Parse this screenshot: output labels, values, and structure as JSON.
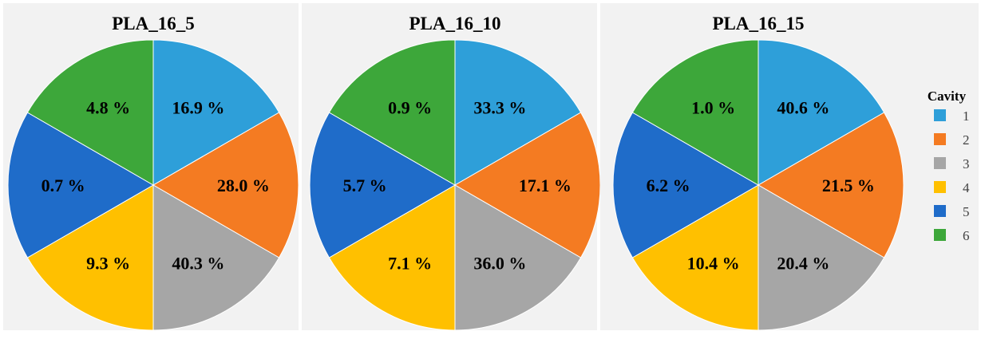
{
  "chart_data": [
    {
      "type": "pie",
      "title": "PLA_16_5",
      "categories": [
        "1",
        "2",
        "3",
        "4",
        "5",
        "6"
      ],
      "labels": [
        "16.9 %",
        "28.0 %",
        "40.3 %",
        "9.3 %",
        "0.7 %",
        "4.8 %"
      ],
      "values": [
        16.9,
        28.0,
        40.3,
        9.3,
        0.7,
        4.8
      ]
    },
    {
      "type": "pie",
      "title": "PLA_16_10",
      "categories": [
        "1",
        "2",
        "3",
        "4",
        "5",
        "6"
      ],
      "labels": [
        "33.3 %",
        "17.1 %",
        "36.0 %",
        "7.1 %",
        "5.7 %",
        "0.9 %"
      ],
      "values": [
        33.3,
        17.1,
        36.0,
        7.1,
        5.7,
        0.9
      ]
    },
    {
      "type": "pie",
      "title": "PLA_16_15",
      "categories": [
        "1",
        "2",
        "3",
        "4",
        "5",
        "6"
      ],
      "labels": [
        "40.6 %",
        "21.5 %",
        "20.4 %",
        "10.4 %",
        "6.2 %",
        "1.0 %"
      ],
      "values": [
        40.6,
        21.5,
        20.4,
        10.4,
        6.2,
        1.0
      ]
    }
  ],
  "legend": {
    "title": "Cavity",
    "items": [
      {
        "label": "1",
        "color": "#2e9fd9"
      },
      {
        "label": "2",
        "color": "#f47b22"
      },
      {
        "label": "3",
        "color": "#a6a6a6"
      },
      {
        "label": "4",
        "color": "#ffc000"
      },
      {
        "label": "5",
        "color": "#1f6cc9"
      },
      {
        "label": "6",
        "color": "#3da73a"
      }
    ]
  }
}
